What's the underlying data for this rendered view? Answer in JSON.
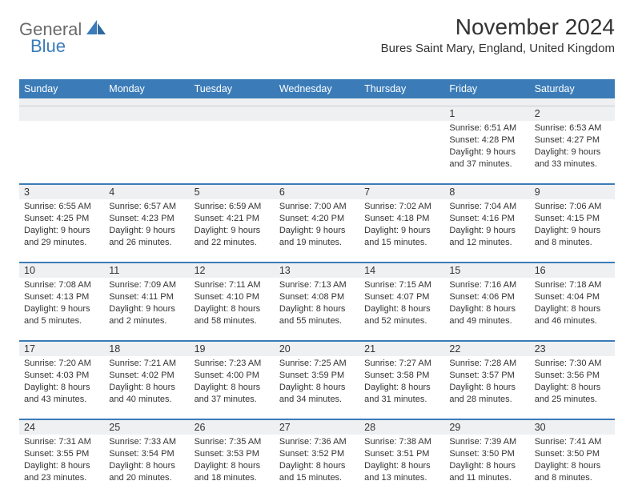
{
  "brand": {
    "part1": "General",
    "part2": "Blue"
  },
  "title": "November 2024",
  "location": "Bures Saint Mary, England, United Kingdom",
  "colors": {
    "header_bg": "#3b7cb8",
    "header_text": "#ffffff",
    "daynum_bg": "#eef0f2",
    "divider": "#3b7cb8",
    "body_text": "#333333",
    "logo_gray": "#6b6b6b",
    "logo_blue": "#3b7cb8",
    "page_bg": "#ffffff"
  },
  "weekdays": [
    "Sunday",
    "Monday",
    "Tuesday",
    "Wednesday",
    "Thursday",
    "Friday",
    "Saturday"
  ],
  "weeks": [
    [
      null,
      null,
      null,
      null,
      null,
      {
        "n": "1",
        "sunrise": "6:51 AM",
        "sunset": "4:28 PM",
        "day_h": "9",
        "day_m": "37"
      },
      {
        "n": "2",
        "sunrise": "6:53 AM",
        "sunset": "4:27 PM",
        "day_h": "9",
        "day_m": "33"
      }
    ],
    [
      {
        "n": "3",
        "sunrise": "6:55 AM",
        "sunset": "4:25 PM",
        "day_h": "9",
        "day_m": "29"
      },
      {
        "n": "4",
        "sunrise": "6:57 AM",
        "sunset": "4:23 PM",
        "day_h": "9",
        "day_m": "26"
      },
      {
        "n": "5",
        "sunrise": "6:59 AM",
        "sunset": "4:21 PM",
        "day_h": "9",
        "day_m": "22"
      },
      {
        "n": "6",
        "sunrise": "7:00 AM",
        "sunset": "4:20 PM",
        "day_h": "9",
        "day_m": "19"
      },
      {
        "n": "7",
        "sunrise": "7:02 AM",
        "sunset": "4:18 PM",
        "day_h": "9",
        "day_m": "15"
      },
      {
        "n": "8",
        "sunrise": "7:04 AM",
        "sunset": "4:16 PM",
        "day_h": "9",
        "day_m": "12"
      },
      {
        "n": "9",
        "sunrise": "7:06 AM",
        "sunset": "4:15 PM",
        "day_h": "9",
        "day_m": "8"
      }
    ],
    [
      {
        "n": "10",
        "sunrise": "7:08 AM",
        "sunset": "4:13 PM",
        "day_h": "9",
        "day_m": "5"
      },
      {
        "n": "11",
        "sunrise": "7:09 AM",
        "sunset": "4:11 PM",
        "day_h": "9",
        "day_m": "2"
      },
      {
        "n": "12",
        "sunrise": "7:11 AM",
        "sunset": "4:10 PM",
        "day_h": "8",
        "day_m": "58"
      },
      {
        "n": "13",
        "sunrise": "7:13 AM",
        "sunset": "4:08 PM",
        "day_h": "8",
        "day_m": "55"
      },
      {
        "n": "14",
        "sunrise": "7:15 AM",
        "sunset": "4:07 PM",
        "day_h": "8",
        "day_m": "52"
      },
      {
        "n": "15",
        "sunrise": "7:16 AM",
        "sunset": "4:06 PM",
        "day_h": "8",
        "day_m": "49"
      },
      {
        "n": "16",
        "sunrise": "7:18 AM",
        "sunset": "4:04 PM",
        "day_h": "8",
        "day_m": "46"
      }
    ],
    [
      {
        "n": "17",
        "sunrise": "7:20 AM",
        "sunset": "4:03 PM",
        "day_h": "8",
        "day_m": "43"
      },
      {
        "n": "18",
        "sunrise": "7:21 AM",
        "sunset": "4:02 PM",
        "day_h": "8",
        "day_m": "40"
      },
      {
        "n": "19",
        "sunrise": "7:23 AM",
        "sunset": "4:00 PM",
        "day_h": "8",
        "day_m": "37"
      },
      {
        "n": "20",
        "sunrise": "7:25 AM",
        "sunset": "3:59 PM",
        "day_h": "8",
        "day_m": "34"
      },
      {
        "n": "21",
        "sunrise": "7:27 AM",
        "sunset": "3:58 PM",
        "day_h": "8",
        "day_m": "31"
      },
      {
        "n": "22",
        "sunrise": "7:28 AM",
        "sunset": "3:57 PM",
        "day_h": "8",
        "day_m": "28"
      },
      {
        "n": "23",
        "sunrise": "7:30 AM",
        "sunset": "3:56 PM",
        "day_h": "8",
        "day_m": "25"
      }
    ],
    [
      {
        "n": "24",
        "sunrise": "7:31 AM",
        "sunset": "3:55 PM",
        "day_h": "8",
        "day_m": "23"
      },
      {
        "n": "25",
        "sunrise": "7:33 AM",
        "sunset": "3:54 PM",
        "day_h": "8",
        "day_m": "20"
      },
      {
        "n": "26",
        "sunrise": "7:35 AM",
        "sunset": "3:53 PM",
        "day_h": "8",
        "day_m": "18"
      },
      {
        "n": "27",
        "sunrise": "7:36 AM",
        "sunset": "3:52 PM",
        "day_h": "8",
        "day_m": "15"
      },
      {
        "n": "28",
        "sunrise": "7:38 AM",
        "sunset": "3:51 PM",
        "day_h": "8",
        "day_m": "13"
      },
      {
        "n": "29",
        "sunrise": "7:39 AM",
        "sunset": "3:50 PM",
        "day_h": "8",
        "day_m": "11"
      },
      {
        "n": "30",
        "sunrise": "7:41 AM",
        "sunset": "3:50 PM",
        "day_h": "8",
        "day_m": "8"
      }
    ]
  ],
  "labels": {
    "sunrise_prefix": "Sunrise: ",
    "sunset_prefix": "Sunset: ",
    "daylight_prefix": "Daylight: ",
    "hours_word": " hours",
    "and_word": "and ",
    "minutes_word": " minutes."
  }
}
